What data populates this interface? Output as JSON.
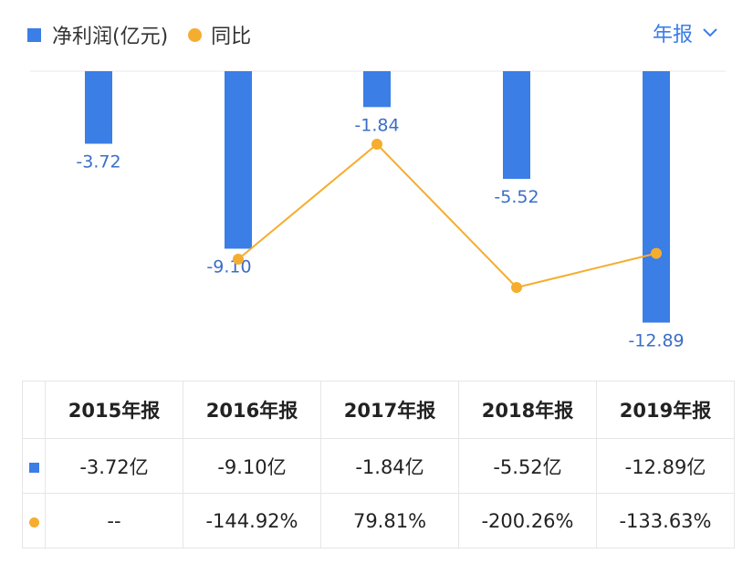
{
  "legend": {
    "series1": "净利润(亿元)",
    "series2": "同比"
  },
  "period_selector": {
    "label": "年报"
  },
  "colors": {
    "bar": "#3a7ee6",
    "line": "#f5ad2f",
    "negative": "#2fb36a",
    "positive": "#e84b4b"
  },
  "chart_data": {
    "type": "bar",
    "categories": [
      "2015年报",
      "2016年报",
      "2017年报",
      "2018年报",
      "2019年报"
    ],
    "series": [
      {
        "name": "净利润(亿元)",
        "type": "bar",
        "values": [
          -3.72,
          -9.1,
          -1.84,
          -5.52,
          -12.89
        ],
        "labels": [
          "-3.72",
          "-9.10",
          "-1.84",
          "-5.52",
          "-12.89"
        ]
      },
      {
        "name": "同比",
        "type": "line",
        "values": [
          null,
          -144.92,
          79.81,
          -200.26,
          -133.63
        ]
      }
    ]
  },
  "table": {
    "headers": [
      "2015年报",
      "2016年报",
      "2017年报",
      "2018年报",
      "2019年报"
    ],
    "profit_row": [
      "-3.72亿",
      "-9.10亿",
      "-1.84亿",
      "-5.52亿",
      "-12.89亿"
    ],
    "yoy_row": [
      "--",
      "-144.92%",
      "79.81%",
      "-200.26%",
      "-133.63%"
    ]
  }
}
